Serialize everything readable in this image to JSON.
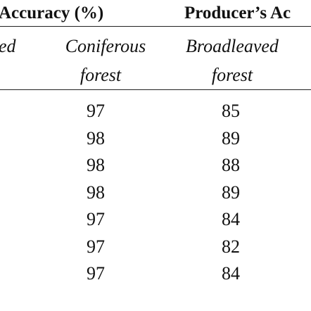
{
  "table": {
    "group_headers": [
      "Accuracy (%)",
      "Producer’s Ac"
    ],
    "column_headers": [
      {
        "line1": "ed",
        "line2": null
      },
      {
        "line1": "Coniferous",
        "line2": "forest"
      },
      {
        "line1": "Broadleaved",
        "line2": "forest"
      }
    ],
    "rows": [
      [
        97,
        85
      ],
      [
        98,
        89
      ],
      [
        98,
        88
      ],
      [
        98,
        89
      ],
      [
        97,
        84
      ],
      [
        97,
        82
      ],
      [
        97,
        84
      ]
    ]
  }
}
